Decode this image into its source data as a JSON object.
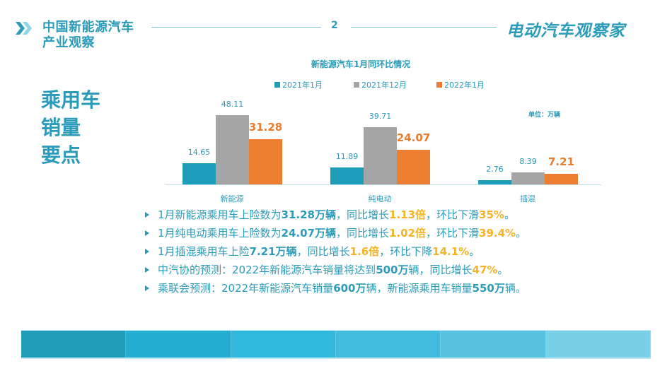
{
  "header": {
    "title_line1": "中国新能源汽车",
    "title_line2": "产业观察",
    "page_number": "2",
    "logo_text": "电动汽车观察家"
  },
  "section_title": [
    "乘用车",
    "销量",
    "要点"
  ],
  "colors": {
    "primary": "#2A9BB8",
    "series_2021_jan": "#1E9EBB",
    "series_2021_dec": "#A5A5A5",
    "series_2022_jan": "#ED7D31",
    "highlight": "#F5B325",
    "footer": [
      "#1F9CB7",
      "#25ADD1",
      "#2FB7DC",
      "#41BCDD",
      "#57C3E0",
      "#77D0E7"
    ]
  },
  "chart": {
    "title": "新能源汽车1月同环比情况",
    "legend": [
      "2021年1月",
      "2021年12月",
      "2022年1月"
    ],
    "unit": "单位：万辆",
    "categories": [
      "新能源",
      "纯电动",
      "插混"
    ]
  },
  "chart_data": {
    "type": "bar",
    "title": "新能源汽车1月同环比情况",
    "categories": [
      "新能源",
      "纯电动",
      "插混"
    ],
    "series": [
      {
        "name": "2021年1月",
        "values": [
          14.65,
          11.89,
          2.76
        ]
      },
      {
        "name": "2021年12月",
        "values": [
          48.11,
          39.71,
          8.39
        ]
      },
      {
        "name": "2022年1月",
        "values": [
          31.28,
          24.07,
          7.21
        ]
      }
    ],
    "xlabel": "",
    "ylabel": "",
    "unit": "万辆",
    "legend_position": "top",
    "grid": false
  },
  "bullets": [
    {
      "segments": [
        {
          "t": "1月新能源乘用车上险数为",
          "s": ""
        },
        {
          "t": "31.28万辆",
          "s": "b"
        },
        {
          "t": "，同比增长",
          "s": ""
        },
        {
          "t": "1.13倍",
          "s": "hl"
        },
        {
          "t": "，环比下滑",
          "s": ""
        },
        {
          "t": "35%",
          "s": "hl"
        },
        {
          "t": "。",
          "s": ""
        }
      ]
    },
    {
      "segments": [
        {
          "t": "1月纯电动乘用车上险数为",
          "s": ""
        },
        {
          "t": "24.07万辆",
          "s": "b"
        },
        {
          "t": "，同比增长",
          "s": ""
        },
        {
          "t": "1.02倍",
          "s": "hl"
        },
        {
          "t": "，环比下滑",
          "s": ""
        },
        {
          "t": "39.4%",
          "s": "hl"
        },
        {
          "t": "。",
          "s": ""
        }
      ]
    },
    {
      "segments": [
        {
          "t": "1月插混乘用车上险",
          "s": ""
        },
        {
          "t": "7.21万辆",
          "s": "b"
        },
        {
          "t": "，同比增长",
          "s": ""
        },
        {
          "t": "1.6倍",
          "s": "hl"
        },
        {
          "t": "，环比下降",
          "s": ""
        },
        {
          "t": "14.1%",
          "s": "hl"
        },
        {
          "t": "。",
          "s": ""
        }
      ]
    },
    {
      "segments": [
        {
          "t": "中汽协的预测：2022年新能源汽车销量将达到",
          "s": ""
        },
        {
          "t": "500万",
          "s": "b"
        },
        {
          "t": "辆，同比增长",
          "s": ""
        },
        {
          "t": "47%",
          "s": "hl"
        },
        {
          "t": "。",
          "s": ""
        }
      ]
    },
    {
      "segments": [
        {
          "t": "乘联会预测：2022年新能源汽车销量",
          "s": ""
        },
        {
          "t": "600万",
          "s": "b"
        },
        {
          "t": "辆，新能源乘用车销量",
          "s": ""
        },
        {
          "t": "550万",
          "s": "b"
        },
        {
          "t": "辆。",
          "s": ""
        }
      ]
    }
  ]
}
